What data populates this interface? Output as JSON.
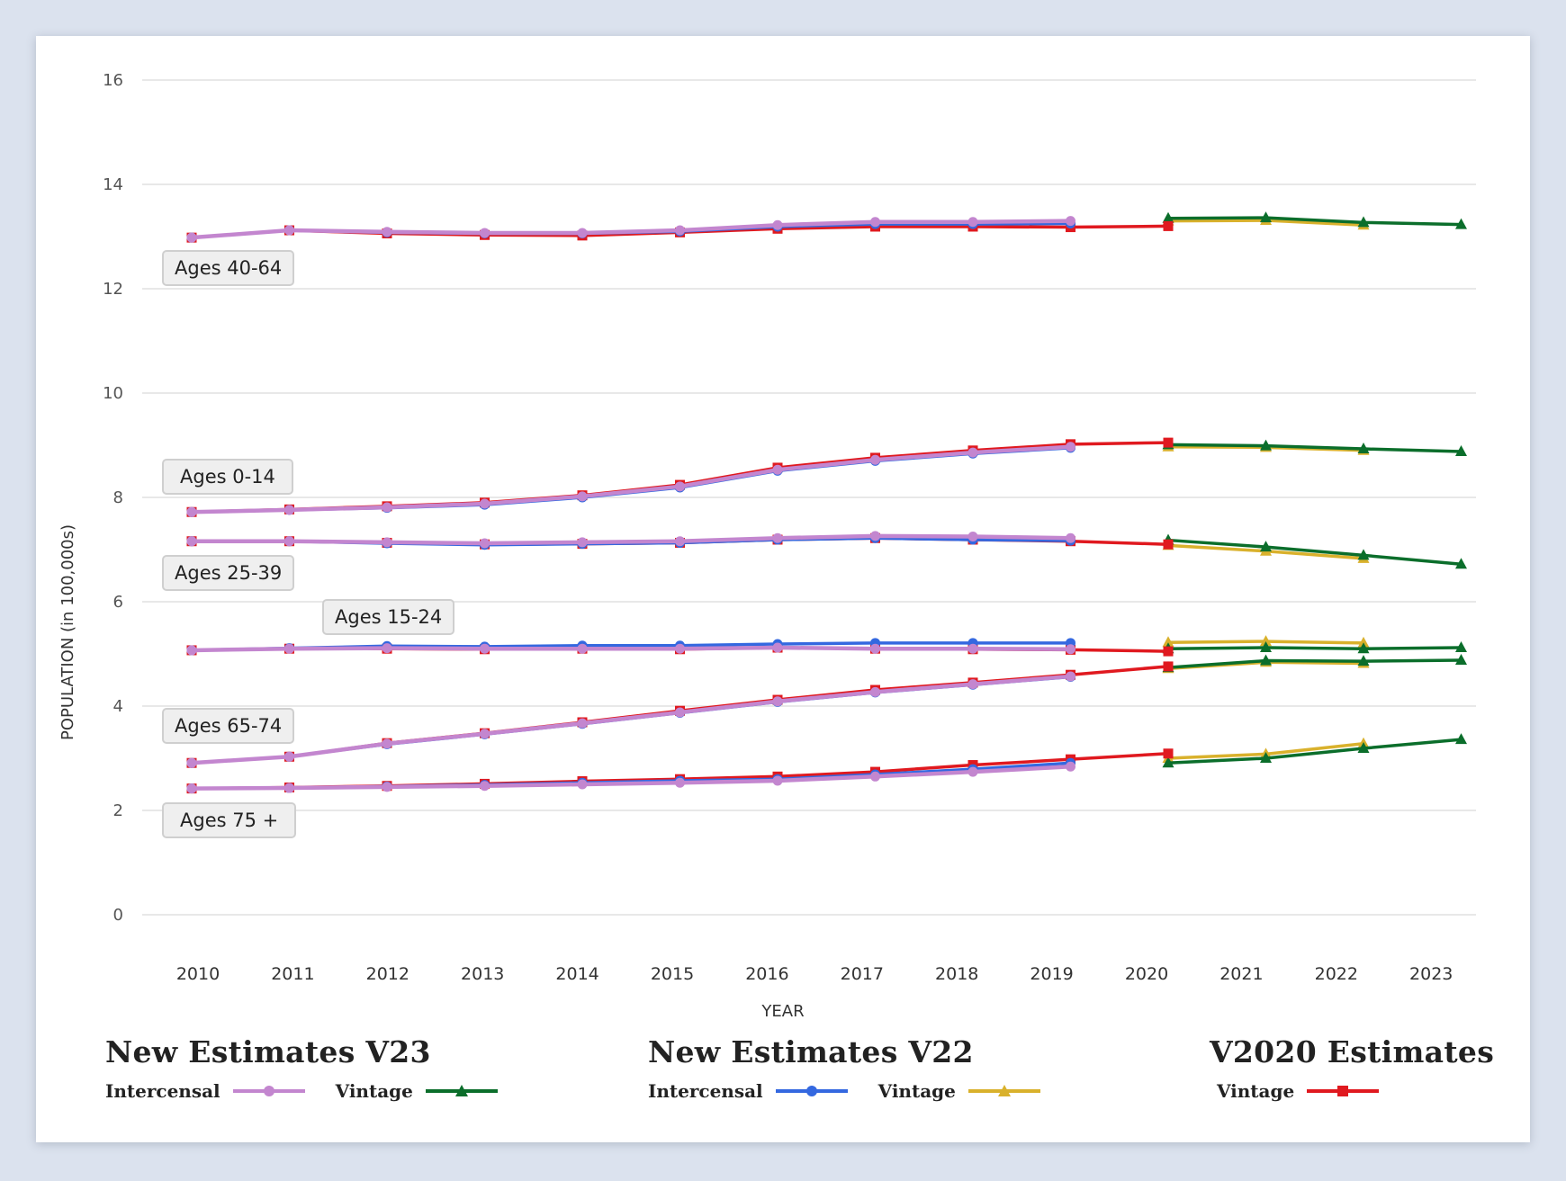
{
  "chart_data": {
    "type": "line",
    "title": "",
    "xlabel": "YEAR",
    "ylabel": "POPULATION (in 100,000s)",
    "ylim": [
      0,
      16
    ],
    "yticks": [
      "0",
      "2",
      "4",
      "6",
      "8",
      "10",
      "12",
      "14",
      "16"
    ],
    "xticks": [
      "2010",
      "2011",
      "2012",
      "2013",
      "2014",
      "2015",
      "2016",
      "2017",
      "2018",
      "2019",
      "2020",
      "2021",
      "2022",
      "2023"
    ],
    "grid": true,
    "legend_position": "bottom",
    "series_styles": {
      "v23_intercensal": {
        "color": "#c386cf",
        "marker": "circle"
      },
      "v23_vintage": {
        "color": "#0b6e2b",
        "marker": "triangle"
      },
      "v22_intercensal": {
        "color": "#3468e0",
        "marker": "circle"
      },
      "v22_vintage": {
        "color": "#d9b12c",
        "marker": "triangle"
      },
      "v2020_vintage": {
        "color": "#e0191f",
        "marker": "square"
      }
    },
    "groups": [
      {
        "age_group": "Ages 40-64",
        "series": {
          "v2020_vintage": {
            "x": [
              2010,
              2011,
              2012,
              2013,
              2014,
              2015,
              2016,
              2017,
              2018,
              2019,
              2020
            ],
            "values": [
              12.98,
              13.12,
              13.06,
              13.03,
              13.02,
              13.08,
              13.15,
              13.19,
              13.19,
              13.18,
              13.2
            ]
          },
          "v22_intercensal": {
            "x": [
              2010,
              2011,
              2012,
              2013,
              2014,
              2015,
              2016,
              2017,
              2018,
              2019
            ],
            "values": [
              12.98,
              13.12,
              13.08,
              13.06,
              13.06,
              13.1,
              13.19,
              13.24,
              13.24,
              13.25
            ]
          },
          "v23_intercensal": {
            "x": [
              2010,
              2011,
              2012,
              2013,
              2014,
              2015,
              2016,
              2017,
              2018,
              2019
            ],
            "values": [
              12.98,
              13.12,
              13.09,
              13.07,
              13.07,
              13.12,
              13.22,
              13.28,
              13.28,
              13.3
            ]
          },
          "v22_vintage": {
            "x": [
              2020,
              2021,
              2022
            ],
            "values": [
              13.3,
              13.31,
              13.22
            ]
          },
          "v23_vintage": {
            "x": [
              2020,
              2021,
              2022,
              2023
            ],
            "values": [
              13.35,
              13.36,
              13.27,
              13.23
            ]
          }
        }
      },
      {
        "age_group": "Ages 0-14",
        "series": {
          "v2020_vintage": {
            "x": [
              2010,
              2011,
              2012,
              2013,
              2014,
              2015,
              2016,
              2017,
              2018,
              2019,
              2020
            ],
            "values": [
              7.72,
              7.77,
              7.83,
              7.9,
              8.04,
              8.24,
              8.57,
              8.76,
              8.9,
              9.02,
              9.05
            ]
          },
          "v22_intercensal": {
            "x": [
              2010,
              2011,
              2012,
              2013,
              2014,
              2015,
              2016,
              2017,
              2018,
              2019
            ],
            "values": [
              7.72,
              7.76,
              7.8,
              7.86,
              8.0,
              8.19,
              8.51,
              8.7,
              8.84,
              8.95
            ]
          },
          "v23_intercensal": {
            "x": [
              2010,
              2011,
              2012,
              2013,
              2014,
              2015,
              2016,
              2017,
              2018,
              2019
            ],
            "values": [
              7.72,
              7.76,
              7.81,
              7.88,
              8.02,
              8.21,
              8.53,
              8.72,
              8.86,
              8.97
            ]
          },
          "v22_vintage": {
            "x": [
              2020,
              2021,
              2022
            ],
            "values": [
              8.97,
              8.96,
              8.9
            ]
          },
          "v23_vintage": {
            "x": [
              2020,
              2021,
              2022,
              2023
            ],
            "values": [
              9.01,
              8.99,
              8.93,
              8.88
            ]
          }
        }
      },
      {
        "age_group": "Ages 25-39",
        "series": {
          "v2020_vintage": {
            "x": [
              2010,
              2011,
              2012,
              2013,
              2014,
              2015,
              2016,
              2017,
              2018,
              2019,
              2020
            ],
            "values": [
              7.16,
              7.16,
              7.13,
              7.1,
              7.11,
              7.13,
              7.19,
              7.22,
              7.19,
              7.16,
              7.1
            ]
          },
          "v22_intercensal": {
            "x": [
              2010,
              2011,
              2012,
              2013,
              2014,
              2015,
              2016,
              2017,
              2018,
              2019
            ],
            "values": [
              7.16,
              7.16,
              7.12,
              7.09,
              7.11,
              7.13,
              7.19,
              7.22,
              7.19,
              7.17
            ]
          },
          "v23_intercensal": {
            "x": [
              2010,
              2011,
              2012,
              2013,
              2014,
              2015,
              2016,
              2017,
              2018,
              2019
            ],
            "values": [
              7.16,
              7.16,
              7.14,
              7.12,
              7.14,
              7.16,
              7.22,
              7.26,
              7.25,
              7.22
            ]
          },
          "v22_vintage": {
            "x": [
              2020,
              2021,
              2022
            ],
            "values": [
              7.08,
              6.97,
              6.83
            ]
          },
          "v23_vintage": {
            "x": [
              2020,
              2021,
              2022,
              2023
            ],
            "values": [
              7.18,
              7.05,
              6.89,
              6.72
            ]
          }
        }
      },
      {
        "age_group": "Ages 15-24",
        "series": {
          "v2020_vintage": {
            "x": [
              2010,
              2011,
              2012,
              2013,
              2014,
              2015,
              2016,
              2017,
              2018,
              2019,
              2020
            ],
            "values": [
              5.07,
              5.1,
              5.1,
              5.09,
              5.1,
              5.09,
              5.12,
              5.1,
              5.09,
              5.08,
              5.05
            ]
          },
          "v22_intercensal": {
            "x": [
              2010,
              2011,
              2012,
              2013,
              2014,
              2015,
              2016,
              2017,
              2018,
              2019
            ],
            "values": [
              5.07,
              5.11,
              5.15,
              5.14,
              5.16,
              5.16,
              5.19,
              5.21,
              5.21,
              5.21
            ]
          },
          "v23_intercensal": {
            "x": [
              2010,
              2011,
              2012,
              2013,
              2014,
              2015,
              2016,
              2017,
              2018,
              2019
            ],
            "values": [
              5.07,
              5.1,
              5.11,
              5.1,
              5.1,
              5.1,
              5.12,
              5.1,
              5.1,
              5.09
            ]
          },
          "v22_vintage": {
            "x": [
              2020,
              2021,
              2022
            ],
            "values": [
              5.22,
              5.24,
              5.21
            ]
          },
          "v23_vintage": {
            "x": [
              2020,
              2021,
              2022,
              2023
            ],
            "values": [
              5.1,
              5.12,
              5.1,
              5.12
            ]
          }
        }
      },
      {
        "age_group": "Ages 65-74",
        "series": {
          "v2020_vintage": {
            "x": [
              2010,
              2011,
              2012,
              2013,
              2014,
              2015,
              2016,
              2017,
              2018,
              2019,
              2020
            ],
            "values": [
              2.91,
              3.03,
              3.29,
              3.48,
              3.69,
              3.91,
              4.12,
              4.31,
              4.45,
              4.6,
              4.76
            ]
          },
          "v22_intercensal": {
            "x": [
              2010,
              2011,
              2012,
              2013,
              2014,
              2015,
              2016,
              2017,
              2018,
              2019
            ],
            "values": [
              2.91,
              3.03,
              3.27,
              3.46,
              3.66,
              3.87,
              4.08,
              4.26,
              4.41,
              4.56
            ]
          },
          "v23_intercensal": {
            "x": [
              2010,
              2011,
              2012,
              2013,
              2014,
              2015,
              2016,
              2017,
              2018,
              2019
            ],
            "values": [
              2.91,
              3.03,
              3.28,
              3.47,
              3.67,
              3.88,
              4.09,
              4.27,
              4.42,
              4.57
            ]
          },
          "v22_vintage": {
            "x": [
              2020,
              2021,
              2022
            ],
            "values": [
              4.72,
              4.84,
              4.82
            ]
          },
          "v23_vintage": {
            "x": [
              2020,
              2021,
              2022,
              2023
            ],
            "values": [
              4.74,
              4.87,
              4.86,
              4.88
            ]
          }
        }
      },
      {
        "age_group": "Ages 75 +",
        "series": {
          "v2020_vintage": {
            "x": [
              2010,
              2011,
              2012,
              2013,
              2014,
              2015,
              2016,
              2017,
              2018,
              2019,
              2020
            ],
            "values": [
              2.42,
              2.44,
              2.47,
              2.51,
              2.56,
              2.6,
              2.65,
              2.74,
              2.87,
              2.98,
              3.09
            ]
          },
          "v22_intercensal": {
            "x": [
              2010,
              2011,
              2012,
              2013,
              2014,
              2015,
              2016,
              2017,
              2018,
              2019
            ],
            "values": [
              2.42,
              2.43,
              2.46,
              2.49,
              2.53,
              2.57,
              2.6,
              2.69,
              2.79,
              2.91
            ]
          },
          "v23_intercensal": {
            "x": [
              2010,
              2011,
              2012,
              2013,
              2014,
              2015,
              2016,
              2017,
              2018,
              2019
            ],
            "values": [
              2.42,
              2.43,
              2.45,
              2.47,
              2.5,
              2.53,
              2.57,
              2.65,
              2.74,
              2.84
            ]
          },
          "v22_vintage": {
            "x": [
              2020,
              2021,
              2022
            ],
            "values": [
              3.0,
              3.08,
              3.28
            ]
          },
          "v23_vintage": {
            "x": [
              2020,
              2021,
              2022,
              2023
            ],
            "values": [
              2.91,
              3.0,
              3.19,
              3.36
            ]
          }
        }
      }
    ]
  },
  "age_labels": [
    "Ages 40-64",
    "Ages 0-14",
    "Ages 25-39",
    "Ages 15-24",
    "Ages 65-74",
    "Ages 75 +"
  ],
  "legend": {
    "v23": {
      "title": "New Estimates V23",
      "intercensal": "Intercensal",
      "vintage": "Vintage"
    },
    "v22": {
      "title": "New Estimates V22",
      "intercensal": "Intercensal",
      "vintage": "Vintage"
    },
    "v2020": {
      "title": "V2020 Estimates",
      "vintage": "Vintage"
    }
  }
}
